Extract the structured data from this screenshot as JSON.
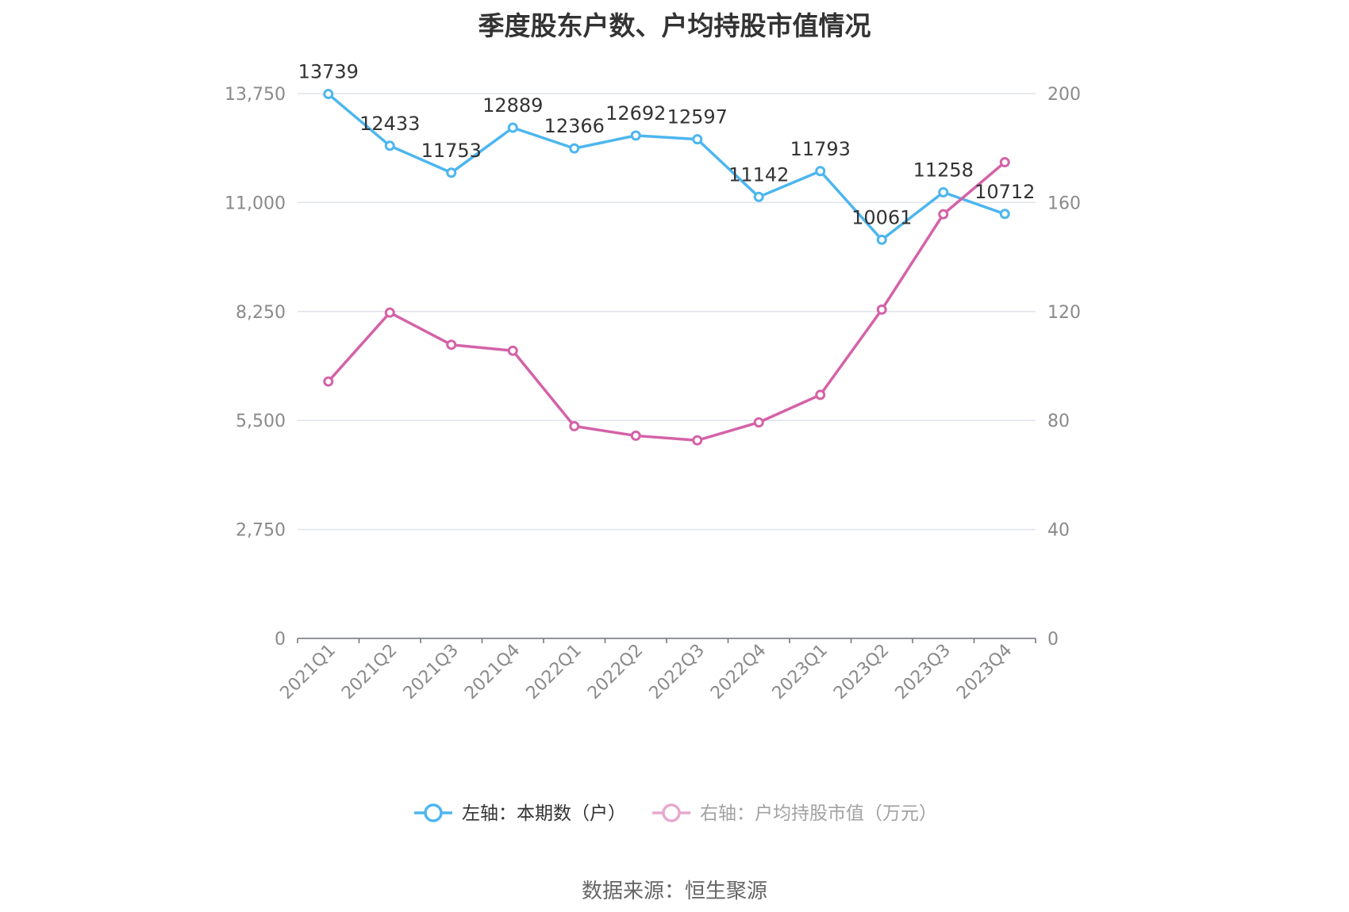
{
  "chart_data": {
    "type": "line",
    "title": "季度股东户数、户均持股市值情况",
    "categories": [
      "2021Q1",
      "2021Q2",
      "2021Q3",
      "2021Q4",
      "2022Q1",
      "2022Q2",
      "2022Q3",
      "2022Q4",
      "2023Q1",
      "2023Q2",
      "2023Q3",
      "2023Q4"
    ],
    "left_axis": {
      "ticks": [
        "0",
        "2,750",
        "5,500",
        "8,250",
        "11,000",
        "13,750"
      ],
      "ylim": [
        0,
        13750
      ]
    },
    "right_axis": {
      "ticks": [
        "0",
        "40",
        "80",
        "120",
        "160",
        "200"
      ],
      "ylim": [
        0,
        200
      ]
    },
    "grid": true,
    "legend_position": "bottom",
    "series": [
      {
        "name": "左轴：本期数（户）",
        "axis": "left",
        "color": "#4db6ee",
        "values": [
          13739,
          12433,
          11753,
          12889,
          12366,
          12692,
          12597,
          11142,
          11793,
          10061,
          11258,
          10712
        ],
        "labels": [
          "13739",
          "12433",
          "11753",
          "12889",
          "12366",
          "12692",
          "12597",
          "11142",
          "11793",
          "10061",
          "11258",
          "10712"
        ]
      },
      {
        "name": "右轴：户均持股市值（万元）",
        "axis": "right",
        "color": "#d462a8",
        "values": [
          94.3,
          119.6,
          107.8,
          105.6,
          77.9,
          74.4,
          72.7,
          79.3,
          89.4,
          120.7,
          155.7,
          174.8
        ]
      }
    ]
  },
  "source": "数据来源：恒生聚源"
}
